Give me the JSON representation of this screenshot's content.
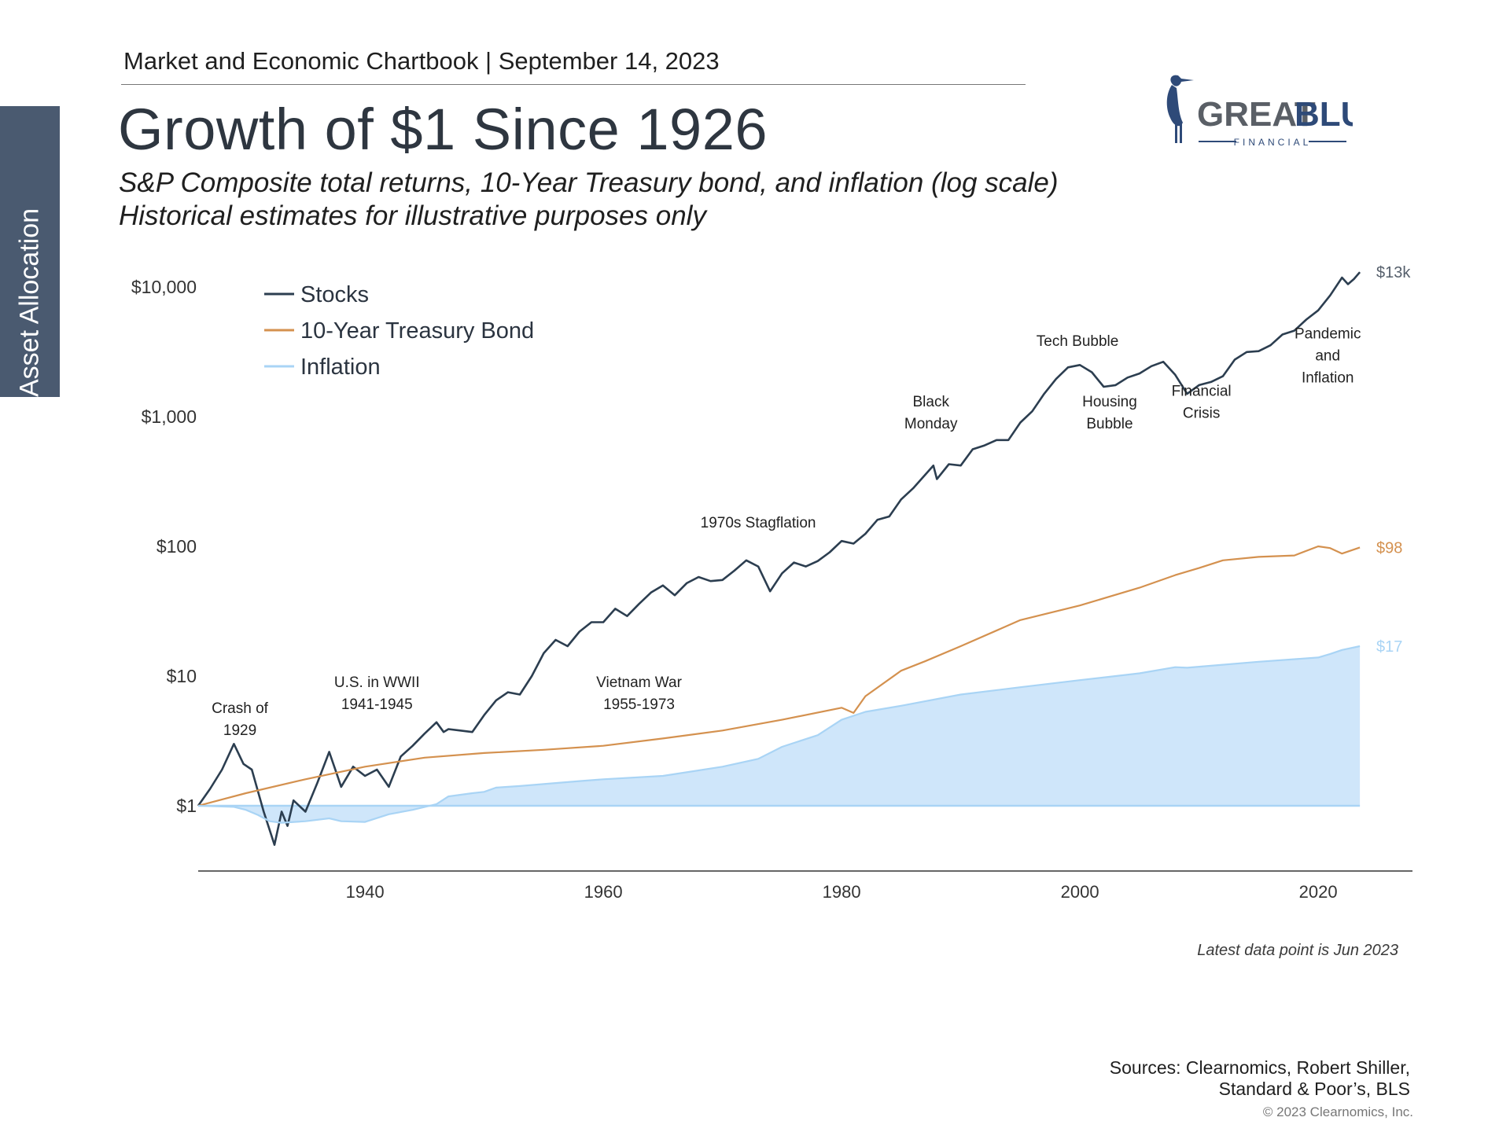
{
  "side_tab": {
    "label": "Asset Allocation",
    "color": "#4a5a70"
  },
  "header": {
    "chartbook": "Market and Economic Chartbook | September 14, 2023",
    "title": "Growth of $1 Since 1926",
    "subtitle_line1": "S&P Composite total returns, 10-Year Treasury bond, and inflation (log scale)",
    "subtitle_line2": "Historical estimates for illustrative purposes only"
  },
  "logo": {
    "word1": "GREAT",
    "word2": "BLUE",
    "tagline": "FINANCIAL",
    "icon": "heron-icon",
    "color": "#2e4a78"
  },
  "colors": {
    "stocks": "#2c3e50",
    "bond": "#d4914f",
    "inflation_line": "#a9d4f5",
    "inflation_fill": "#cfe6fa",
    "axis": "#333333"
  },
  "chart_data": {
    "type": "line",
    "scale": "log",
    "y_tick_labels": [
      "$1",
      "$10",
      "$100",
      "$1,000",
      "$10,000"
    ],
    "y_tick_values": [
      1,
      10,
      100,
      1000,
      10000
    ],
    "ylim": [
      0.3,
      20000
    ],
    "x_tick_labels": [
      "1940",
      "1960",
      "1980",
      "2000",
      "2020"
    ],
    "x_tick_values": [
      1940,
      1960,
      1980,
      2000,
      2020
    ],
    "xlim": [
      1926,
      2028
    ],
    "legend_position": "top-left",
    "series": [
      {
        "name": "Stocks",
        "end_label": "$13k",
        "points": [
          [
            1926,
            1
          ],
          [
            1927,
            1.35
          ],
          [
            1928,
            1.9
          ],
          [
            1929,
            3
          ],
          [
            1929.8,
            2.1
          ],
          [
            1930.5,
            1.9
          ],
          [
            1931.5,
            0.9
          ],
          [
            1932.4,
            0.5
          ],
          [
            1933,
            0.9
          ],
          [
            1933.5,
            0.7
          ],
          [
            1934,
            1.1
          ],
          [
            1935,
            0.9
          ],
          [
            1936,
            1.5
          ],
          [
            1937,
            2.6
          ],
          [
            1937.6,
            1.8
          ],
          [
            1938,
            1.4
          ],
          [
            1939,
            2.0
          ],
          [
            1940,
            1.7
          ],
          [
            1941,
            1.9
          ],
          [
            1942,
            1.4
          ],
          [
            1943,
            2.4
          ],
          [
            1944,
            2.9
          ],
          [
            1945,
            3.6
          ],
          [
            1946,
            4.4
          ],
          [
            1946.6,
            3.7
          ],
          [
            1947,
            3.9
          ],
          [
            1948,
            3.8
          ],
          [
            1949,
            3.7
          ],
          [
            1950,
            5.0
          ],
          [
            1951,
            6.5
          ],
          [
            1952,
            7.5
          ],
          [
            1953,
            7.2
          ],
          [
            1954,
            10
          ],
          [
            1955,
            15
          ],
          [
            1956,
            19
          ],
          [
            1957,
            17
          ],
          [
            1958,
            22
          ],
          [
            1959,
            26
          ],
          [
            1960,
            26
          ],
          [
            1961,
            33
          ],
          [
            1962,
            29
          ],
          [
            1963,
            36
          ],
          [
            1964,
            44
          ],
          [
            1965,
            50
          ],
          [
            1966,
            42
          ],
          [
            1967,
            52
          ],
          [
            1968,
            58
          ],
          [
            1969,
            54
          ],
          [
            1970,
            55
          ],
          [
            1971,
            65
          ],
          [
            1972,
            78
          ],
          [
            1973,
            70
          ],
          [
            1974,
            45
          ],
          [
            1975,
            62
          ],
          [
            1976,
            75
          ],
          [
            1977,
            70
          ],
          [
            1978,
            77
          ],
          [
            1979,
            90
          ],
          [
            1980,
            110
          ],
          [
            1981,
            105
          ],
          [
            1982,
            125
          ],
          [
            1983,
            160
          ],
          [
            1984,
            170
          ],
          [
            1985,
            230
          ],
          [
            1986,
            280
          ],
          [
            1987.7,
            420
          ],
          [
            1988,
            330
          ],
          [
            1989,
            430
          ],
          [
            1990,
            420
          ],
          [
            1991,
            560
          ],
          [
            1992,
            600
          ],
          [
            1993,
            660
          ],
          [
            1994,
            660
          ],
          [
            1995,
            900
          ],
          [
            1996,
            1100
          ],
          [
            1997,
            1500
          ],
          [
            1998,
            1950
          ],
          [
            1999,
            2400
          ],
          [
            2000,
            2500
          ],
          [
            2001,
            2200
          ],
          [
            2002,
            1700
          ],
          [
            2003,
            1750
          ],
          [
            2004,
            2000
          ],
          [
            2005,
            2150
          ],
          [
            2006,
            2450
          ],
          [
            2007,
            2650
          ],
          [
            2008,
            2100
          ],
          [
            2009,
            1500
          ],
          [
            2010,
            1750
          ],
          [
            2011,
            1850
          ],
          [
            2012,
            2050
          ],
          [
            2013,
            2750
          ],
          [
            2014,
            3150
          ],
          [
            2015,
            3200
          ],
          [
            2016,
            3550
          ],
          [
            2017,
            4300
          ],
          [
            2018,
            4600
          ],
          [
            2019,
            5600
          ],
          [
            2020,
            6600
          ],
          [
            2021,
            8600
          ],
          [
            2022,
            11800
          ],
          [
            2022.5,
            10500
          ],
          [
            2023,
            11500
          ],
          [
            2023.5,
            13000
          ]
        ]
      },
      {
        "name": "10-Year Treasury Bond",
        "end_label": "$98",
        "points": [
          [
            1926,
            1
          ],
          [
            1930,
            1.25
          ],
          [
            1935,
            1.6
          ],
          [
            1940,
            2.0
          ],
          [
            1945,
            2.35
          ],
          [
            1950,
            2.55
          ],
          [
            1955,
            2.7
          ],
          [
            1960,
            2.9
          ],
          [
            1965,
            3.3
          ],
          [
            1970,
            3.8
          ],
          [
            1975,
            4.6
          ],
          [
            1980,
            5.7
          ],
          [
            1981,
            5.2
          ],
          [
            1982,
            7.0
          ],
          [
            1985,
            11
          ],
          [
            1987,
            13
          ],
          [
            1990,
            17
          ],
          [
            1995,
            27
          ],
          [
            2000,
            35
          ],
          [
            2005,
            48
          ],
          [
            2008,
            60
          ],
          [
            2010,
            68
          ],
          [
            2012,
            78
          ],
          [
            2015,
            83
          ],
          [
            2018,
            85
          ],
          [
            2020,
            100
          ],
          [
            2021,
            97
          ],
          [
            2022,
            88
          ],
          [
            2023.5,
            98
          ]
        ]
      },
      {
        "name": "Inflation",
        "end_label": "$17",
        "points": [
          [
            1926,
            1
          ],
          [
            1929,
            0.98
          ],
          [
            1930,
            0.93
          ],
          [
            1931,
            0.85
          ],
          [
            1932,
            0.76
          ],
          [
            1933,
            0.74
          ],
          [
            1935,
            0.76
          ],
          [
            1937,
            0.8
          ],
          [
            1938,
            0.76
          ],
          [
            1940,
            0.75
          ],
          [
            1942,
            0.86
          ],
          [
            1944,
            0.93
          ],
          [
            1946,
            1.03
          ],
          [
            1947,
            1.18
          ],
          [
            1949,
            1.25
          ],
          [
            1950,
            1.28
          ],
          [
            1951,
            1.38
          ],
          [
            1953,
            1.42
          ],
          [
            1958,
            1.55
          ],
          [
            1960,
            1.6
          ],
          [
            1965,
            1.7
          ],
          [
            1970,
            2.0
          ],
          [
            1973,
            2.3
          ],
          [
            1975,
            2.85
          ],
          [
            1978,
            3.5
          ],
          [
            1980,
            4.6
          ],
          [
            1982,
            5.3
          ],
          [
            1985,
            5.9
          ],
          [
            1990,
            7.2
          ],
          [
            1995,
            8.2
          ],
          [
            2000,
            9.3
          ],
          [
            2005,
            10.5
          ],
          [
            2008,
            11.7
          ],
          [
            2009,
            11.6
          ],
          [
            2010,
            11.8
          ],
          [
            2015,
            12.9
          ],
          [
            2020,
            13.9
          ],
          [
            2021,
            14.8
          ],
          [
            2022,
            15.9
          ],
          [
            2023.5,
            17
          ]
        ]
      }
    ],
    "annotations": [
      {
        "text": "Crash of\n1929",
        "x": 1929.5,
        "y": 5.2
      },
      {
        "text": "U.S. in WWII\n1941-1945",
        "x": 1941,
        "y": 8.2
      },
      {
        "text": "Vietnam War\n1955-1973",
        "x": 1963,
        "y": 8.2
      },
      {
        "text": "1970s Stagflation",
        "x": 1973,
        "y": 140
      },
      {
        "text": "Black\nMonday",
        "x": 1987.5,
        "y": 1200
      },
      {
        "text": "Tech Bubble",
        "x": 1999.8,
        "y": 3500
      },
      {
        "text": "Housing\nBubble",
        "x": 2002.5,
        "y": 1200
      },
      {
        "text": "Financial\nCrisis",
        "x": 2010.2,
        "y": 1450
      },
      {
        "text": "Pandemic\nand\nInflation",
        "x": 2020.8,
        "y": 4000
      }
    ]
  },
  "footer": {
    "latest_note": "Latest data point is Jun 2023",
    "sources_line1": "Sources: Clearnomics, Robert Shiller,",
    "sources_line2": "Standard & Poor’s, BLS",
    "copyright": "© 2023 Clearnomics, Inc."
  }
}
